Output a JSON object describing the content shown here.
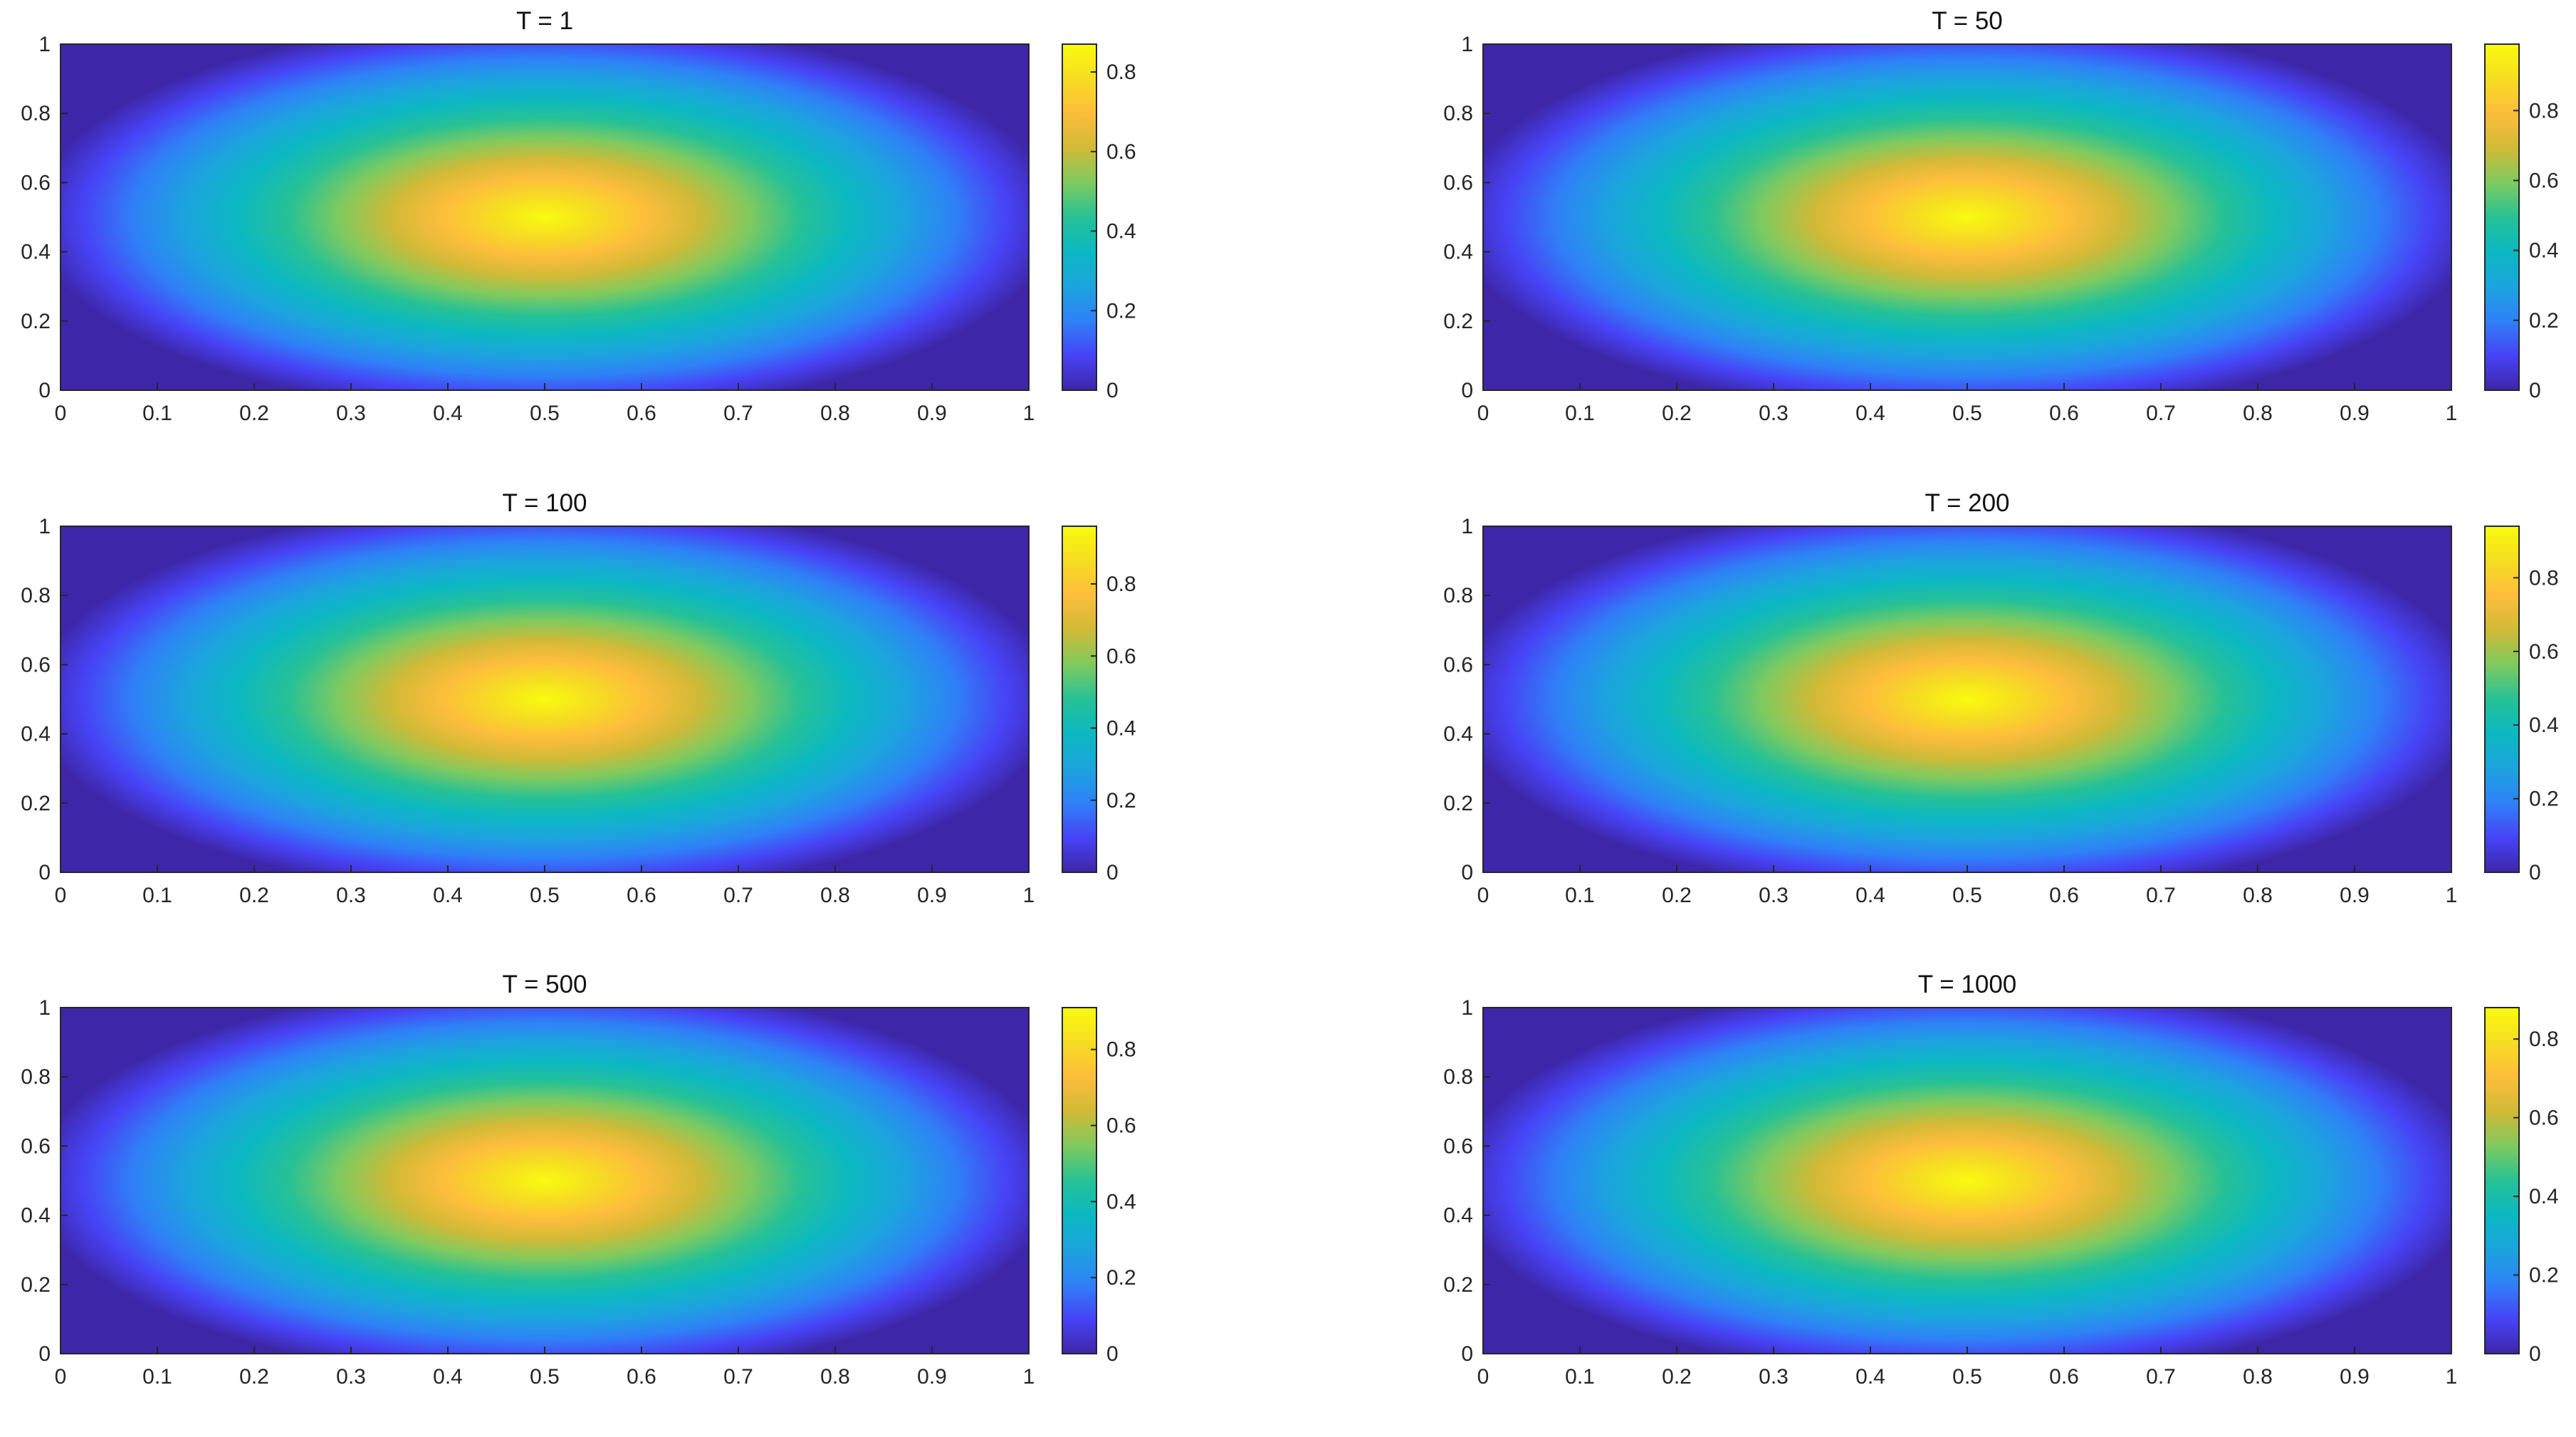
{
  "figure": {
    "colormap": "parula",
    "colormap_stops": [
      "#3e26a8",
      "#4743f6",
      "#2f81f7",
      "#1ca4de",
      "#0cb8c2",
      "#26c196",
      "#7fca5f",
      "#d0ba37",
      "#fdbd3c",
      "#f6dd22",
      "#f9fb0e"
    ]
  },
  "chart_data": [
    {
      "type": "heatmap",
      "title": "T = 1",
      "x_range": [
        0,
        1
      ],
      "y_range": [
        0,
        1
      ],
      "x_ticks": [
        "0",
        "0.1",
        "0.2",
        "0.3",
        "0.4",
        "0.5",
        "0.6",
        "0.7",
        "0.8",
        "0.9",
        "1"
      ],
      "y_ticks": [
        "0",
        "0.2",
        "0.4",
        "0.6",
        "0.8",
        "1"
      ],
      "colorbar_range": [
        0,
        0.87
      ],
      "colorbar_ticks": [
        "0",
        "0.2",
        "0.4",
        "0.6",
        "0.8"
      ],
      "peak": {
        "x": 0.5,
        "y": 0.5,
        "value": 0.87
      }
    },
    {
      "type": "heatmap",
      "title": "T = 50",
      "x_range": [
        0,
        1
      ],
      "y_range": [
        0,
        1
      ],
      "x_ticks": [
        "0",
        "0.1",
        "0.2",
        "0.3",
        "0.4",
        "0.5",
        "0.6",
        "0.7",
        "0.8",
        "0.9",
        "1"
      ],
      "y_ticks": [
        "0",
        "0.2",
        "0.4",
        "0.6",
        "0.8",
        "1"
      ],
      "colorbar_range": [
        0,
        0.99
      ],
      "colorbar_ticks": [
        "0",
        "0.2",
        "0.4",
        "0.6",
        "0.8"
      ],
      "peak": {
        "x": 0.5,
        "y": 0.5,
        "value": 0.99
      }
    },
    {
      "type": "heatmap",
      "title": "T = 100",
      "x_range": [
        0,
        1
      ],
      "y_range": [
        0,
        1
      ],
      "x_ticks": [
        "0",
        "0.1",
        "0.2",
        "0.3",
        "0.4",
        "0.5",
        "0.6",
        "0.7",
        "0.8",
        "0.9",
        "1"
      ],
      "y_ticks": [
        "0",
        "0.2",
        "0.4",
        "0.6",
        "0.8",
        "1"
      ],
      "colorbar_range": [
        0,
        0.96
      ],
      "colorbar_ticks": [
        "0",
        "0.2",
        "0.4",
        "0.6",
        "0.8"
      ],
      "peak": {
        "x": 0.5,
        "y": 0.5,
        "value": 0.96
      }
    },
    {
      "type": "heatmap",
      "title": "T = 200",
      "x_range": [
        0,
        1
      ],
      "y_range": [
        0,
        1
      ],
      "x_ticks": [
        "0",
        "0.1",
        "0.2",
        "0.3",
        "0.4",
        "0.5",
        "0.6",
        "0.7",
        "0.8",
        "0.9",
        "1"
      ],
      "y_ticks": [
        "0",
        "0.2",
        "0.4",
        "0.6",
        "0.8",
        "1"
      ],
      "colorbar_range": [
        0,
        0.94
      ],
      "colorbar_ticks": [
        "0",
        "0.2",
        "0.4",
        "0.6",
        "0.8"
      ],
      "peak": {
        "x": 0.5,
        "y": 0.5,
        "value": 0.94
      }
    },
    {
      "type": "heatmap",
      "title": "T = 500",
      "x_range": [
        0,
        1
      ],
      "y_range": [
        0,
        1
      ],
      "x_ticks": [
        "0",
        "0.1",
        "0.2",
        "0.3",
        "0.4",
        "0.5",
        "0.6",
        "0.7",
        "0.8",
        "0.9",
        "1"
      ],
      "y_ticks": [
        "0",
        "0.2",
        "0.4",
        "0.6",
        "0.8",
        "1"
      ],
      "colorbar_range": [
        0,
        0.91
      ],
      "colorbar_ticks": [
        "0",
        "0.2",
        "0.4",
        "0.6",
        "0.8"
      ],
      "peak": {
        "x": 0.5,
        "y": 0.5,
        "value": 0.91
      }
    },
    {
      "type": "heatmap",
      "title": "T = 1000",
      "x_range": [
        0,
        1
      ],
      "y_range": [
        0,
        1
      ],
      "x_ticks": [
        "0",
        "0.1",
        "0.2",
        "0.3",
        "0.4",
        "0.5",
        "0.6",
        "0.7",
        "0.8",
        "0.9",
        "1"
      ],
      "y_ticks": [
        "0",
        "0.2",
        "0.4",
        "0.6",
        "0.8",
        "1"
      ],
      "colorbar_range": [
        0,
        0.88
      ],
      "colorbar_ticks": [
        "0",
        "0.2",
        "0.4",
        "0.6",
        "0.8"
      ],
      "peak": {
        "x": 0.5,
        "y": 0.5,
        "value": 0.88
      }
    }
  ]
}
